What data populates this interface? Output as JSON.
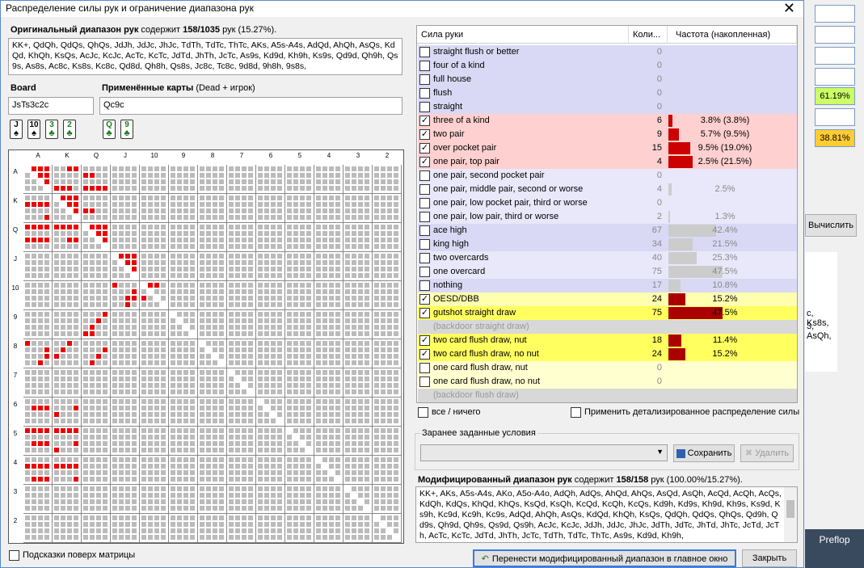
{
  "window": {
    "title": "Распределение силы рук и ограничение диапазона рук",
    "close": "✕"
  },
  "original": {
    "label": "Оригинальный диапазон рук",
    "contains_pre": "содержит",
    "count": "158/1035",
    "contains_post": "рук (15.27%).",
    "text": "KK+, QdQh, QdQs, QhQs, JdJh, JdJc, JhJc, TdTh, TdTc, ThTc, AKs, A5s-A4s, AdQd, AhQh, AsQs, KdQd, KhQh, KsQs, AcJc, KcJc, AcTc, KcTc, JdTd, JhTh, JcTc, As9s, Kd9d, Kh9h, Ks9s, Qd9d, Qh9h, Qs9s, As8s, Ac8c, Ks8s, Kc8c, Qd8d, Qh8h, Qs8s, Jc8c, Tc8c, 9d8d, 9h8h, 9s8s,"
  },
  "board": {
    "label": "Board",
    "value": "JsTs3c2c",
    "cards": [
      {
        "r": "J",
        "s": "♠"
      },
      {
        "r": "10",
        "s": "♠"
      },
      {
        "r": "3",
        "s": "♣"
      },
      {
        "r": "2",
        "s": "♣"
      }
    ]
  },
  "applied": {
    "label": "Применённые карты",
    "sub": "(Dead + игрок)",
    "value": "Qc9c",
    "cards": [
      {
        "r": "Q",
        "s": "♣"
      },
      {
        "r": "9",
        "s": "♣"
      }
    ]
  },
  "matrix_hint": "Подсказки поверх матрицы",
  "table": {
    "headers": [
      "Сила руки",
      "Коли...",
      "Частота (накопленная)"
    ],
    "rows": [
      {
        "name": "straight flush or better",
        "checked": false,
        "count": "0",
        "pct": "",
        "bar": 0,
        "bg": "#d9d9f5",
        "barc": ""
      },
      {
        "name": "four of a kind",
        "checked": false,
        "count": "0",
        "pct": "",
        "bar": 0,
        "bg": "#d9d9f5",
        "barc": ""
      },
      {
        "name": "full house",
        "checked": false,
        "count": "0",
        "pct": "",
        "bar": 0,
        "bg": "#d9d9f5",
        "barc": ""
      },
      {
        "name": "flush",
        "checked": false,
        "count": "0",
        "pct": "",
        "bar": 0,
        "bg": "#d9d9f5",
        "barc": ""
      },
      {
        "name": "straight",
        "checked": false,
        "count": "0",
        "pct": "",
        "bar": 0,
        "bg": "#d9d9f5",
        "barc": ""
      },
      {
        "name": "three of a kind",
        "checked": true,
        "count": "6",
        "pct": "3.8% (3.8%)",
        "bar": 0.038,
        "bg": "#ffd0d0",
        "barc": "#cc0000"
      },
      {
        "name": "two pair",
        "checked": true,
        "count": "9",
        "pct": "5.7% (9.5%)",
        "bar": 0.095,
        "bg": "#ffd0d0",
        "barc": "#cc0000"
      },
      {
        "name": "over pocket pair",
        "checked": true,
        "count": "15",
        "pct": "9.5% (19.0%)",
        "bar": 0.19,
        "bg": "#ffd0d0",
        "barc": "#cc0000"
      },
      {
        "name": "one pair, top pair",
        "checked": true,
        "count": "4",
        "pct": "2.5% (21.5%)",
        "bar": 0.215,
        "bg": "#ffd0d0",
        "barc": "#cc0000"
      },
      {
        "name": "one pair, second pocket pair",
        "checked": false,
        "count": "0",
        "pct": "",
        "bar": 0,
        "bg": "#e8e8fa",
        "barc": ""
      },
      {
        "name": "one pair, middle pair, second or worse",
        "checked": false,
        "count": "4",
        "pct": "2.5%",
        "bar": 0.025,
        "bg": "#e8e8fa",
        "barc": "#ccc"
      },
      {
        "name": "one pair, low pocket pair, third or worse",
        "checked": false,
        "count": "0",
        "pct": "",
        "bar": 0,
        "bg": "#e8e8fa",
        "barc": ""
      },
      {
        "name": "one pair, low pair, third or worse",
        "checked": false,
        "count": "2",
        "pct": "1.3%",
        "bar": 0.013,
        "bg": "#e8e8fa",
        "barc": "#ccc"
      },
      {
        "name": "ace high",
        "checked": false,
        "count": "67",
        "pct": "42.4%",
        "bar": 0.424,
        "bg": "#d9d9f5",
        "barc": "#ccc"
      },
      {
        "name": "king high",
        "checked": false,
        "count": "34",
        "pct": "21.5%",
        "bar": 0.215,
        "bg": "#d9d9f5",
        "barc": "#ccc"
      },
      {
        "name": "two overcards",
        "checked": false,
        "count": "40",
        "pct": "25.3%",
        "bar": 0.253,
        "bg": "#e8e8fa",
        "barc": "#ccc"
      },
      {
        "name": "one overcard",
        "checked": false,
        "count": "75",
        "pct": "47.5%",
        "bar": 0.475,
        "bg": "#e8e8fa",
        "barc": "#ccc"
      },
      {
        "name": "nothing",
        "checked": false,
        "count": "17",
        "pct": "10.8%",
        "bar": 0.108,
        "bg": "#d9d9f5",
        "barc": "#ccc"
      },
      {
        "name": "OESD/DBB",
        "checked": true,
        "count": "24",
        "pct": "15.2%",
        "bar": 0.152,
        "bg": "#ffffb0",
        "barc": "#aa0000"
      },
      {
        "name": "gutshot straight draw",
        "checked": true,
        "count": "75",
        "pct": "47.5%",
        "bar": 0.475,
        "bg": "#ffff60",
        "barc": "#aa0000"
      },
      {
        "name": "(backdoor straight draw)",
        "checked": false,
        "count": "",
        "pct": "",
        "bar": 0,
        "bg": "#d8d8d8",
        "barc": "",
        "dis": true
      },
      {
        "name": "two card flush draw, nut",
        "checked": true,
        "count": "18",
        "pct": "11.4%",
        "bar": 0.114,
        "bg": "#ffff60",
        "barc": "#aa0000"
      },
      {
        "name": "two card flush draw, no nut",
        "checked": true,
        "count": "24",
        "pct": "15.2%",
        "bar": 0.152,
        "bg": "#ffff60",
        "barc": "#aa0000"
      },
      {
        "name": "one card flush draw, nut",
        "checked": false,
        "count": "0",
        "pct": "",
        "bar": 0,
        "bg": "#ffffd0",
        "barc": ""
      },
      {
        "name": "one card flush draw, no nut",
        "checked": false,
        "count": "0",
        "pct": "",
        "bar": 0,
        "bg": "#ffffd0",
        "barc": ""
      },
      {
        "name": "(backdoor flush draw)",
        "checked": false,
        "count": "",
        "pct": "",
        "bar": 0,
        "bg": "#d8d8d8",
        "barc": "",
        "dis": true
      }
    ]
  },
  "all_none": "все / ничего",
  "apply_detailed": "Применить детализированное распределение силы",
  "presets": {
    "label": "Заранее заданные условия",
    "save": "Сохранить",
    "delete": "Удалить"
  },
  "modified": {
    "label": "Модифицированный диапазон рук",
    "contains_pre": "содержит",
    "count": "158/158",
    "contains_post": "рук (100.00%/15.27%).",
    "text": "KK+, AKs, A5s-A4s, AKo, A5o-A4o, AdQh, AdQs, AhQd, AhQs, AsQd, AsQh, AcQd, AcQh, AcQs, KdQh, KdQs, KhQd, KhQs, KsQd, KsQh, KcQd, KcQh, KcQs, Kd9h, Kd9s, Kh9d, Kh9s, Ks9d, Ks9h, Kc9d, Kc9h, Kc9s, AdQd, AhQh, AsQs, KdQd, KhQh, KsQs, QdQh, QdQs, QhQs, Qd9h, Qd9s, Qh9d, Qh9s, Qs9d, Qs9h, AcJc, KcJc, JdJh, JdJc, JhJc, JdTh, JdTc, JhTd, JhTc, JcTd, JcTh, AcTc, KcTc, JdTd, JhTh, JcTc, TdTh, TdTc, ThTc, As9s, Kd9d, Kh9h,"
  },
  "buttons": {
    "transfer": "Перенести модифицированный диапазон в главное окно",
    "close": "Закрыть"
  },
  "right": {
    "pct1": "61.19%",
    "pct2": "38.81%",
    "calc": "Вычислить",
    "text1": "c, Ks8s,",
    "text2": "3, AsQh,",
    "preflop": "Preflop"
  },
  "ranks": [
    "A",
    "K",
    "Q",
    "J",
    "10",
    "9",
    "8",
    "7",
    "6",
    "5",
    "4",
    "3",
    "2"
  ]
}
